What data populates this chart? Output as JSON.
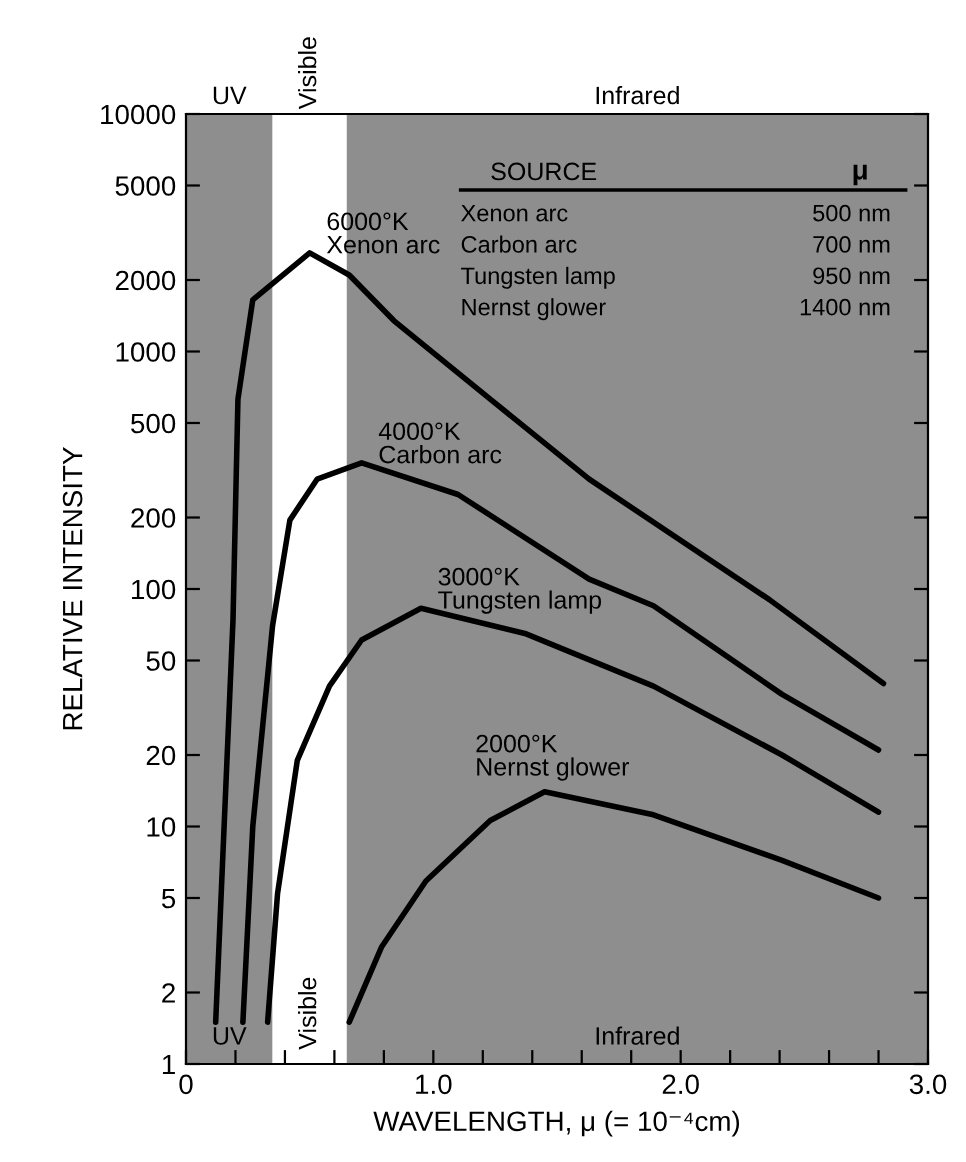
{
  "chart_data": {
    "type": "line",
    "xlabel": "WAVELENGTH, μ (= 10⁻⁴cm)",
    "ylabel": "RELATIVE INTENSITY",
    "log": "y",
    "grid": false,
    "marker": "none",
    "line_style": "solid",
    "xlim": [
      0,
      3.0
    ],
    "ylim": [
      1,
      10000
    ],
    "xticks": [
      0,
      {
        "value": 0.2,
        "label": null
      },
      {
        "value": 0.4,
        "label": null
      },
      {
        "value": 0.6,
        "label": null
      },
      {
        "value": 0.8,
        "label": null
      },
      {
        "value": 1.0,
        "label": "1.0"
      },
      {
        "value": 1.2,
        "label": null
      },
      {
        "value": 1.4,
        "label": null
      },
      {
        "value": 1.6,
        "label": null
      },
      {
        "value": 1.8,
        "label": null
      },
      {
        "value": 2.0,
        "label": "2.0"
      },
      {
        "value": 2.2,
        "label": null
      },
      {
        "value": 2.4,
        "label": null
      },
      {
        "value": 2.6,
        "label": null
      },
      {
        "value": 2.8,
        "label": null
      },
      {
        "value": 3.0,
        "label": "3.0"
      }
    ],
    "yticks": [
      1,
      2,
      5,
      10,
      20,
      50,
      100,
      200,
      500,
      1000,
      2000,
      5000,
      10000
    ],
    "bands": [
      {
        "axis": "x",
        "from": 0,
        "to": 0.35,
        "label": "UV",
        "color": "#8e8e8e"
      },
      {
        "axis": "x",
        "from": 0.35,
        "to": 0.65,
        "label": "Visible",
        "color": "#ffffff"
      },
      {
        "axis": "x",
        "from": 0.65,
        "to": 3.0,
        "label": "Infrared",
        "color": "#8e8e8e"
      }
    ],
    "series": [
      {
        "name": "6000°K\nXenon arc",
        "color": "#000000",
        "x": [
          0.12,
          0.19,
          0.21,
          0.27,
          0.5,
          0.66,
          0.84,
          1.23,
          1.63,
          2.36,
          2.82
        ],
        "values": [
          1.5,
          74,
          630,
          1650,
          2600,
          2100,
          1350,
          630,
          290,
          90,
          40
        ]
      },
      {
        "name": "4000°K\nCarbon arc",
        "color": "#000000",
        "x": [
          0.23,
          0.27,
          0.35,
          0.42,
          0.53,
          0.71,
          1.1,
          1.63,
          1.89,
          2.41,
          2.8
        ],
        "values": [
          1.5,
          10,
          70,
          195,
          290,
          340,
          250,
          110,
          85,
          36,
          21
        ]
      },
      {
        "name": "3000°K\nTungsten lamp",
        "color": "#000000",
        "x": [
          0.33,
          0.37,
          0.45,
          0.58,
          0.71,
          0.95,
          1.37,
          1.89,
          2.41,
          2.8
        ],
        "values": [
          1.5,
          5.2,
          19,
          39,
          61,
          83,
          65,
          39,
          20,
          11.5
        ]
      },
      {
        "name": "2000°K\nNernst glower",
        "color": "#000000",
        "x": [
          0.66,
          0.79,
          0.97,
          1.23,
          1.45,
          1.89,
          2.41,
          2.8
        ],
        "values": [
          1.5,
          3.1,
          5.9,
          10.6,
          14,
          11.2,
          7.2,
          5.0
        ]
      }
    ],
    "annotations": [
      "SOURCE",
      "μ",
      "Xenon arc",
      "500 nm",
      "Carbon arc",
      "700 nm",
      "Tungsten lamp",
      "950 nm",
      "Nernst glower",
      "1400 nm"
    ]
  }
}
